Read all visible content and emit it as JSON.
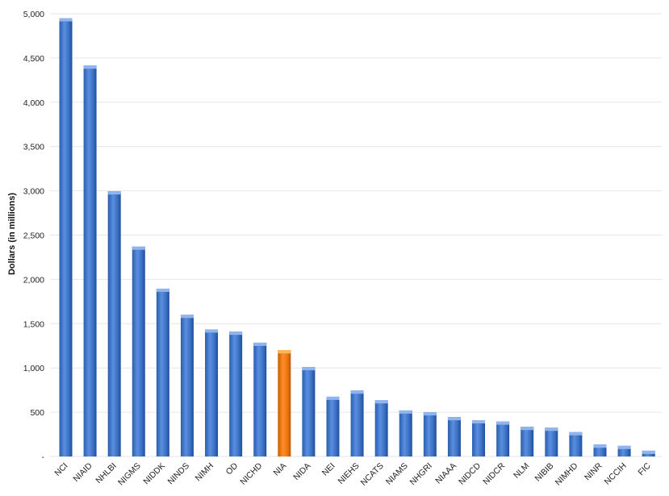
{
  "chart_data": {
    "type": "bar",
    "title": "",
    "xlabel": "",
    "ylabel": "Dollars (in millions)",
    "ylim": [
      0,
      5000
    ],
    "y_ticks": [
      0,
      500,
      1000,
      1500,
      2000,
      2500,
      3000,
      3500,
      4000,
      4500,
      5000
    ],
    "y_tick_labels": [
      "-",
      "500",
      "1,000",
      "1,500",
      "2,000",
      "2,500",
      "3,000",
      "3,500",
      "4,000",
      "4,500",
      "5,000"
    ],
    "grid": true,
    "legend": "none",
    "categories": [
      "NCI",
      "NIAID",
      "NHLBI",
      "NIGMS",
      "NIDDK",
      "NINDS",
      "NIMH",
      "OD",
      "NICHD",
      "NIA",
      "NIDA",
      "NEI",
      "NIEHS",
      "NCATS",
      "NIAMS",
      "NHGRI",
      "NIAAA",
      "NIDCD",
      "NIDCR",
      "NLM",
      "NIBIB",
      "NIMHD",
      "NINR",
      "NCCIH",
      "FIC"
    ],
    "values": [
      4950,
      4415,
      2995,
      2370,
      1895,
      1600,
      1435,
      1410,
      1285,
      1200,
      1010,
      675,
      745,
      635,
      520,
      500,
      445,
      410,
      395,
      335,
      325,
      275,
      135,
      120,
      65
    ],
    "highlight_index": 9,
    "colors": {
      "bar": "#3f74c7",
      "bar_light": "#8fb4ee",
      "bar_dark": "#1f4f9a",
      "highlight": "#ec7510",
      "highlight_light": "#ffb35c",
      "highlight_dark": "#b95200",
      "grid": "#e6e6e6"
    }
  }
}
